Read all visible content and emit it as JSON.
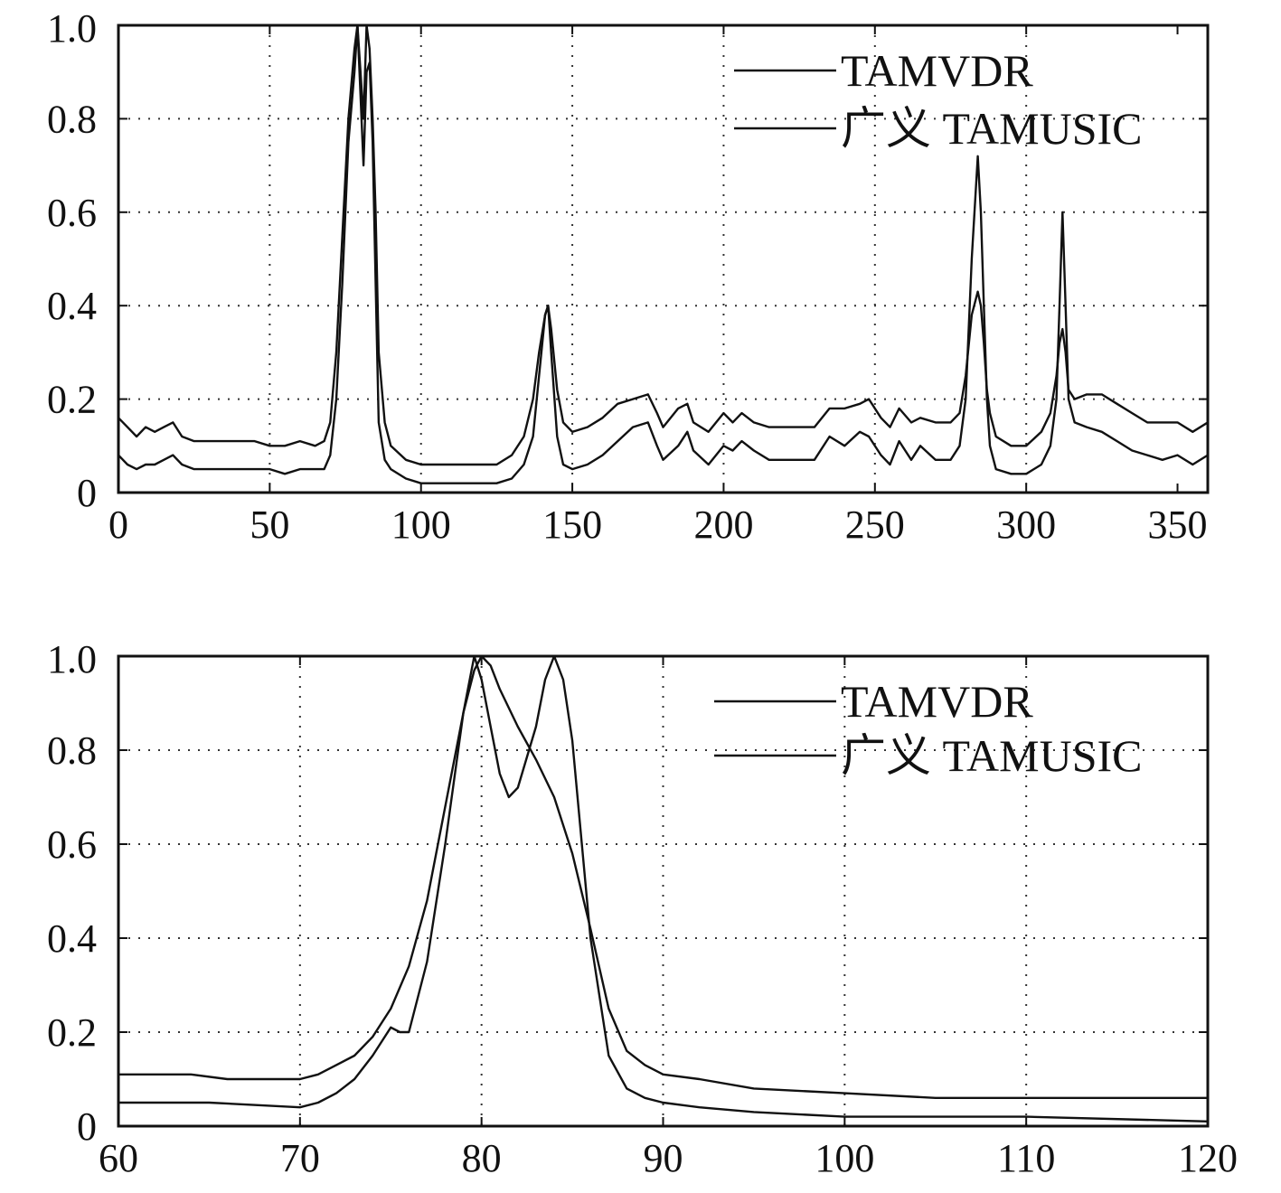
{
  "chart_data": [
    {
      "type": "line",
      "title": "",
      "xlabel": "",
      "ylabel": "",
      "xlim": [
        0,
        360
      ],
      "ylim": [
        0,
        1.0
      ],
      "grid": true,
      "legend_position": "top-right",
      "xticks": [
        0,
        50,
        100,
        150,
        200,
        250,
        300,
        350
      ],
      "xtick_labels": [
        "0",
        "50",
        "100",
        "150",
        "200",
        "250",
        "300",
        "350"
      ],
      "yticks": [
        0,
        0.2,
        0.4,
        0.6,
        0.8,
        1.0
      ],
      "ytick_labels": [
        "0",
        "0.2",
        "0.4",
        "0.6",
        "0.8",
        "1.0"
      ],
      "series": [
        {
          "name": "TAMVDR",
          "x": [
            0,
            3,
            6,
            9,
            12,
            15,
            18,
            21,
            25,
            30,
            35,
            40,
            45,
            50,
            55,
            60,
            65,
            68,
            70,
            72,
            74,
            76,
            78,
            79,
            80,
            81,
            82,
            83,
            84,
            85,
            86,
            88,
            90,
            95,
            100,
            110,
            120,
            125,
            130,
            134,
            137,
            139,
            141,
            142,
            143,
            145,
            147,
            150,
            155,
            160,
            165,
            170,
            175,
            178,
            180,
            185,
            188,
            190,
            195,
            200,
            203,
            206,
            210,
            215,
            220,
            225,
            230,
            235,
            240,
            245,
            248,
            252,
            255,
            258,
            262,
            265,
            270,
            275,
            278,
            280,
            282,
            284,
            285,
            286,
            287,
            288,
            290,
            295,
            300,
            305,
            308,
            310,
            311,
            312,
            313,
            314,
            316,
            320,
            325,
            330,
            335,
            340,
            345,
            350,
            355,
            360
          ],
          "values": [
            0.16,
            0.14,
            0.12,
            0.14,
            0.13,
            0.14,
            0.15,
            0.12,
            0.11,
            0.11,
            0.11,
            0.11,
            0.11,
            0.1,
            0.1,
            0.11,
            0.1,
            0.11,
            0.15,
            0.3,
            0.55,
            0.8,
            0.95,
            1.0,
            0.9,
            0.8,
            1.0,
            0.95,
            0.8,
            0.6,
            0.3,
            0.15,
            0.1,
            0.07,
            0.06,
            0.06,
            0.06,
            0.06,
            0.08,
            0.12,
            0.2,
            0.3,
            0.38,
            0.4,
            0.35,
            0.22,
            0.15,
            0.13,
            0.14,
            0.16,
            0.19,
            0.2,
            0.21,
            0.17,
            0.14,
            0.18,
            0.19,
            0.15,
            0.13,
            0.17,
            0.15,
            0.17,
            0.15,
            0.14,
            0.14,
            0.14,
            0.14,
            0.18,
            0.18,
            0.19,
            0.2,
            0.16,
            0.14,
            0.18,
            0.15,
            0.16,
            0.15,
            0.15,
            0.17,
            0.25,
            0.38,
            0.43,
            0.4,
            0.32,
            0.22,
            0.17,
            0.12,
            0.1,
            0.1,
            0.13,
            0.17,
            0.25,
            0.32,
            0.35,
            0.3,
            0.22,
            0.2,
            0.21,
            0.21,
            0.19,
            0.17,
            0.15,
            0.15,
            0.15,
            0.13,
            0.15
          ]
        },
        {
          "name": "广义 TAMUSIC",
          "x": [
            0,
            3,
            6,
            9,
            12,
            15,
            18,
            21,
            25,
            30,
            35,
            40,
            45,
            50,
            55,
            60,
            65,
            68,
            70,
            72,
            74,
            76,
            78,
            79,
            80,
            81,
            82,
            83,
            84,
            85,
            86,
            88,
            90,
            95,
            100,
            110,
            120,
            125,
            130,
            134,
            137,
            139,
            141,
            142,
            143,
            145,
            147,
            150,
            155,
            160,
            165,
            170,
            175,
            178,
            180,
            185,
            188,
            190,
            195,
            200,
            203,
            206,
            210,
            215,
            220,
            225,
            230,
            235,
            240,
            245,
            248,
            252,
            255,
            258,
            262,
            265,
            270,
            275,
            278,
            280,
            282,
            284,
            285,
            286,
            287,
            288,
            290,
            295,
            300,
            305,
            308,
            310,
            311,
            312,
            313,
            314,
            316,
            320,
            325,
            330,
            335,
            340,
            345,
            350,
            355,
            360
          ],
          "values": [
            0.08,
            0.06,
            0.05,
            0.06,
            0.06,
            0.07,
            0.08,
            0.06,
            0.05,
            0.05,
            0.05,
            0.05,
            0.05,
            0.05,
            0.04,
            0.05,
            0.05,
            0.05,
            0.08,
            0.2,
            0.45,
            0.75,
            0.9,
            1.0,
            0.85,
            0.7,
            0.9,
            0.92,
            0.75,
            0.45,
            0.15,
            0.07,
            0.05,
            0.03,
            0.02,
            0.02,
            0.02,
            0.02,
            0.03,
            0.06,
            0.12,
            0.25,
            0.38,
            0.4,
            0.3,
            0.12,
            0.06,
            0.05,
            0.06,
            0.08,
            0.11,
            0.14,
            0.15,
            0.1,
            0.07,
            0.1,
            0.13,
            0.09,
            0.06,
            0.1,
            0.09,
            0.11,
            0.09,
            0.07,
            0.07,
            0.07,
            0.07,
            0.12,
            0.1,
            0.13,
            0.12,
            0.08,
            0.06,
            0.11,
            0.07,
            0.1,
            0.07,
            0.07,
            0.1,
            0.2,
            0.5,
            0.72,
            0.6,
            0.4,
            0.2,
            0.1,
            0.05,
            0.04,
            0.04,
            0.06,
            0.1,
            0.2,
            0.4,
            0.6,
            0.4,
            0.2,
            0.15,
            0.14,
            0.13,
            0.11,
            0.09,
            0.08,
            0.07,
            0.08,
            0.06,
            0.08
          ]
        }
      ]
    },
    {
      "type": "line",
      "title": "",
      "xlabel": "",
      "ylabel": "",
      "xlim": [
        60,
        120
      ],
      "ylim": [
        0,
        1.0
      ],
      "grid": true,
      "legend_position": "top-right",
      "xticks": [
        60,
        70,
        80,
        90,
        100,
        110,
        120
      ],
      "xtick_labels": [
        "60",
        "70",
        "80",
        "90",
        "100",
        "110",
        "120"
      ],
      "yticks": [
        0,
        0.2,
        0.4,
        0.6,
        0.8,
        1.0
      ],
      "ytick_labels": [
        "0",
        "0.2",
        "0.4",
        "0.6",
        "0.8",
        "1.0"
      ],
      "series": [
        {
          "name": "TAMVDR",
          "x": [
            60,
            64,
            66,
            70,
            71,
            72,
            73,
            74,
            75,
            76,
            77,
            78,
            79,
            79.6,
            80,
            80.5,
            81,
            82,
            83,
            84,
            85,
            86,
            87,
            88,
            89,
            90,
            92,
            95,
            100,
            105,
            110,
            115,
            120
          ],
          "values": [
            0.11,
            0.11,
            0.1,
            0.1,
            0.11,
            0.13,
            0.15,
            0.19,
            0.25,
            0.34,
            0.48,
            0.68,
            0.88,
            0.97,
            1.0,
            0.98,
            0.93,
            0.85,
            0.78,
            0.7,
            0.58,
            0.42,
            0.25,
            0.16,
            0.13,
            0.11,
            0.1,
            0.08,
            0.07,
            0.06,
            0.06,
            0.06,
            0.06
          ]
        },
        {
          "name": "广义 TAMUSIC",
          "x": [
            60,
            65,
            70,
            71,
            72,
            73,
            74,
            75,
            75.5,
            76,
            77,
            78,
            79,
            79.6,
            80,
            80.5,
            81,
            81.5,
            82,
            83,
            83.5,
            84,
            84.5,
            85,
            86,
            87,
            88,
            89,
            90,
            92,
            95,
            100,
            110,
            120
          ],
          "values": [
            0.05,
            0.05,
            0.04,
            0.05,
            0.07,
            0.1,
            0.15,
            0.21,
            0.2,
            0.2,
            0.35,
            0.6,
            0.88,
            1.0,
            0.95,
            0.85,
            0.75,
            0.7,
            0.72,
            0.85,
            0.95,
            1.0,
            0.95,
            0.82,
            0.4,
            0.15,
            0.08,
            0.06,
            0.05,
            0.04,
            0.03,
            0.02,
            0.02,
            0.01
          ]
        }
      ]
    }
  ]
}
